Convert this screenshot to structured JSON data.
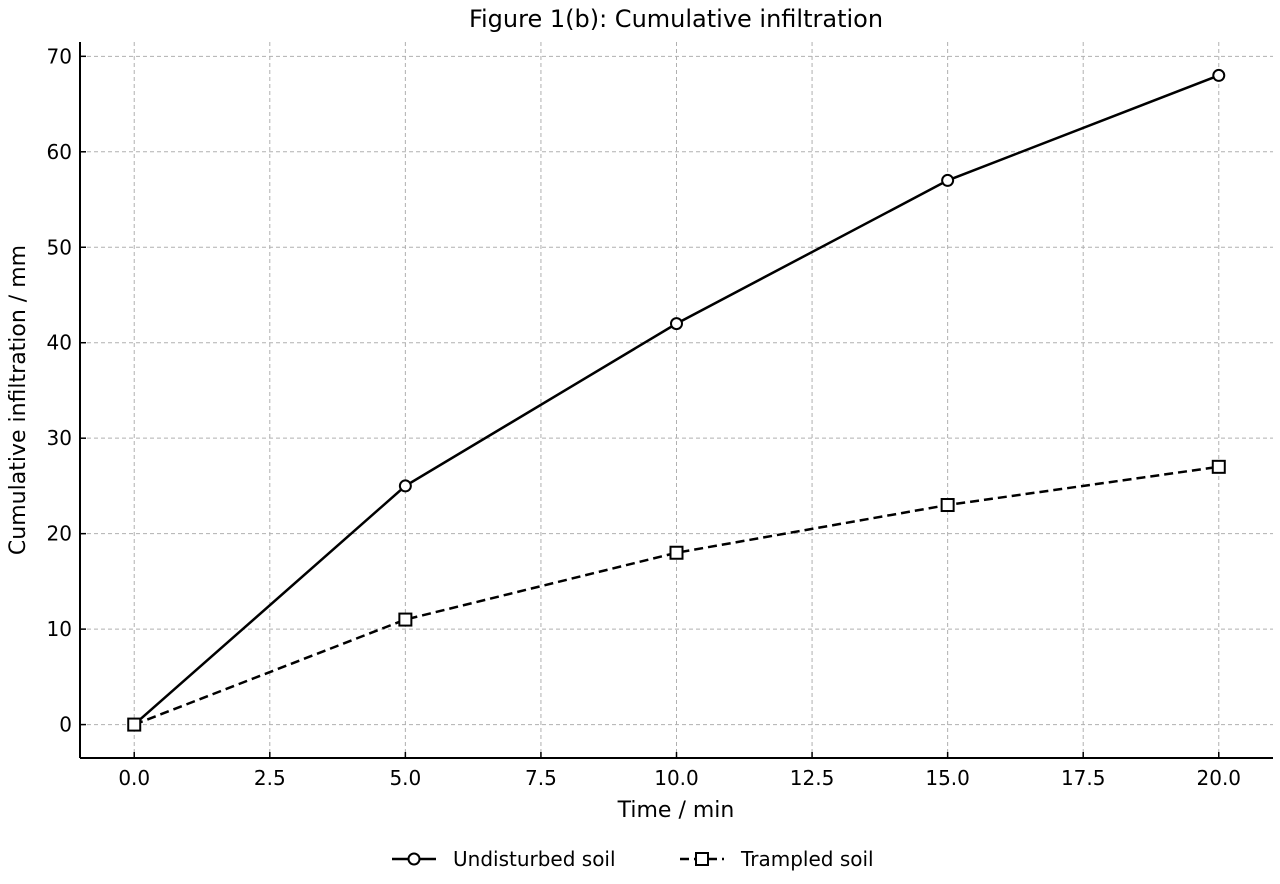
{
  "chart_data": {
    "type": "line",
    "title": "Figure 1(b): Cumulative infiltration",
    "xlabel": "Time / min",
    "ylabel": "Cumulative infiltration / mm",
    "xlim": [
      -1,
      21
    ],
    "ylim": [
      -3.5,
      71.5
    ],
    "xticks": [
      0.0,
      2.5,
      5.0,
      7.5,
      10.0,
      12.5,
      15.0,
      17.5,
      20.0
    ],
    "xtick_labels": [
      "0.0",
      "2.5",
      "5.0",
      "7.5",
      "10.0",
      "12.5",
      "15.0",
      "17.5",
      "20.0"
    ],
    "yticks": [
      0,
      10,
      20,
      30,
      40,
      50,
      60,
      70
    ],
    "ytick_labels": [
      "0",
      "10",
      "20",
      "30",
      "40",
      "50",
      "60",
      "70"
    ],
    "grid": true,
    "legend_position": "bottom-center, below plot",
    "series": [
      {
        "name": "Undisturbed soil",
        "x": [
          0,
          5,
          10,
          15,
          20
        ],
        "y": [
          0,
          25,
          42,
          57,
          68
        ],
        "line_style": "solid",
        "marker": "circle",
        "color": "#000000"
      },
      {
        "name": "Trampled soil",
        "x": [
          0,
          5,
          10,
          15,
          20
        ],
        "y": [
          0,
          11,
          18,
          23,
          27
        ],
        "line_style": "dashed",
        "marker": "square",
        "color": "#000000"
      }
    ]
  }
}
